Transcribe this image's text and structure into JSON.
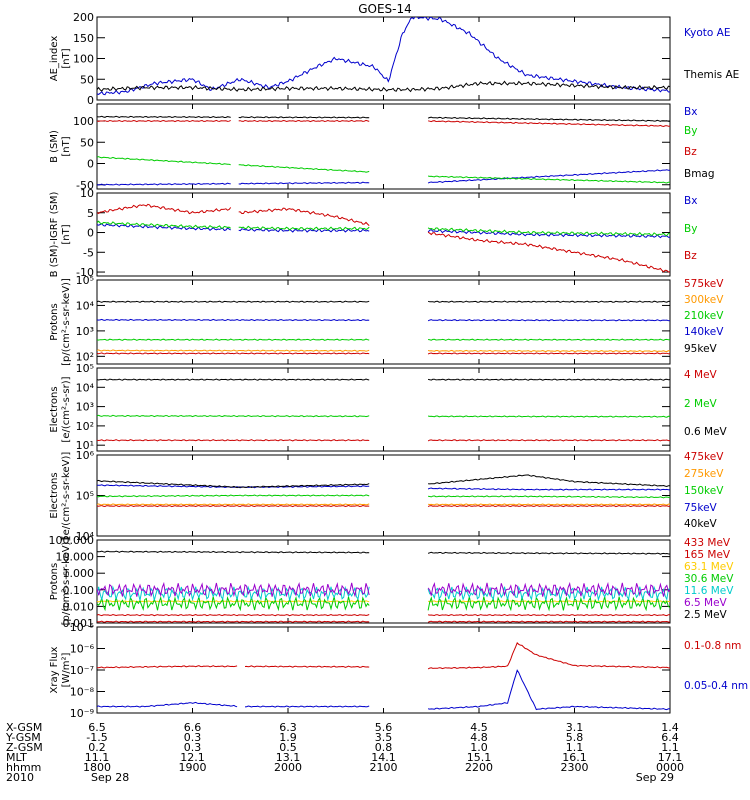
{
  "title": "GOES-14",
  "chart_data": [
    {
      "type": "line",
      "ylabel": "AE_index\n[nT]",
      "ylim": [
        0,
        200
      ],
      "yticks": [
        {
          "v": 0,
          "t": "0"
        },
        {
          "v": 50,
          "t": "50"
        },
        {
          "v": 100,
          "t": "100"
        },
        {
          "v": 150,
          "t": "150"
        },
        {
          "v": 200,
          "t": "200"
        }
      ],
      "series": [
        {
          "name": "Kyoto AE",
          "color": "#0000cc",
          "x": [
            0.0,
            0.3,
            0.6,
            1.0,
            1.2,
            1.5,
            1.8,
            2.0,
            2.3,
            2.5,
            2.7,
            2.9,
            3.05,
            3.2,
            3.3,
            3.6,
            3.9,
            4.2,
            4.5,
            5.0,
            5.5,
            6.0
          ],
          "y": [
            15,
            20,
            40,
            50,
            25,
            50,
            30,
            45,
            80,
            100,
            90,
            80,
            45,
            160,
            200,
            195,
            160,
            100,
            60,
            45,
            30,
            22
          ]
        },
        {
          "name": "Themis AE",
          "color": "#000000",
          "x": [
            0.0,
            0.5,
            1.0,
            1.5,
            2.0,
            2.5,
            3.0,
            3.3,
            3.6,
            4.0,
            4.5,
            5.0,
            5.5,
            6.0
          ],
          "y": [
            25,
            30,
            30,
            25,
            28,
            28,
            25,
            25,
            28,
            40,
            40,
            35,
            30,
            30
          ]
        }
      ]
    },
    {
      "type": "line",
      "ylabel": "B (SM)\n[nT]",
      "ylim": [
        -60,
        140
      ],
      "yticks": [
        {
          "v": -50,
          "t": "-50"
        },
        {
          "v": 0,
          "t": "0"
        },
        {
          "v": 50,
          "t": "50"
        },
        {
          "v": 100,
          "t": "100"
        }
      ],
      "gaps": [
        [
          1.4,
          1.47
        ],
        [
          2.85,
          3.45
        ]
      ],
      "series": [
        {
          "name": "Bx",
          "color": "#0000cc",
          "x": [
            0,
            2.85,
            3.45,
            6.0
          ],
          "y": [
            -50,
            -45,
            -45,
            -15
          ]
        },
        {
          "name": "By",
          "color": "#00cc00",
          "x": [
            0,
            2.85,
            3.45,
            6.0
          ],
          "y": [
            15,
            -20,
            -30,
            -45
          ]
        },
        {
          "name": "Bz",
          "color": "#cc0000",
          "x": [
            0,
            2.85,
            3.45,
            6.0
          ],
          "y": [
            100,
            100,
            100,
            88
          ]
        },
        {
          "name": "Bmag",
          "color": "#000000",
          "x": [
            0,
            2.85,
            3.45,
            6.0
          ],
          "y": [
            110,
            108,
            108,
            100
          ]
        }
      ]
    },
    {
      "type": "line",
      "ylabel": "B (SM)-IGRF (SM)\n[nT]",
      "ylim": [
        -11,
        10
      ],
      "yticks": [
        {
          "v": -10,
          "t": "-10"
        },
        {
          "v": -5,
          "t": "-5"
        },
        {
          "v": 0,
          "t": "0"
        },
        {
          "v": 5,
          "t": "5"
        },
        {
          "v": 10,
          "t": "10"
        }
      ],
      "gaps": [
        [
          1.4,
          1.47
        ],
        [
          2.85,
          3.45
        ]
      ],
      "series": [
        {
          "name": "Bx",
          "color": "#0000cc",
          "x": [
            0,
            1.0,
            2.0,
            2.85,
            3.45,
            4.5,
            6.0
          ],
          "y": [
            2,
            1,
            0.5,
            0.5,
            0.5,
            -0.5,
            -1
          ]
        },
        {
          "name": "By",
          "color": "#00cc00",
          "x": [
            0,
            1.0,
            2.0,
            2.85,
            3.45,
            4.5,
            6.0
          ],
          "y": [
            2.5,
            1.5,
            1,
            1,
            1,
            0,
            -0.5
          ]
        },
        {
          "name": "Bz",
          "color": "#cc0000",
          "x": [
            0,
            0.5,
            1.0,
            1.4,
            1.5,
            2.0,
            2.5,
            2.85,
            3.45,
            4.0,
            4.5,
            5.0,
            5.5,
            6.0
          ],
          "y": [
            5,
            7,
            5,
            6,
            5,
            6,
            4,
            2,
            0,
            -2,
            -3,
            -5,
            -7,
            -10
          ]
        }
      ]
    },
    {
      "type": "line",
      "log": true,
      "ylabel": "Protons\n[p/(cm²-s-sr-keV)]",
      "ylim": [
        50,
        100000
      ],
      "yticks": [
        {
          "v": 100,
          "t": "10²"
        },
        {
          "v": 1000,
          "t": "10³"
        },
        {
          "v": 10000,
          "t": "10⁴"
        },
        {
          "v": 100000,
          "t": "10⁵"
        }
      ],
      "gaps": [
        [
          2.85,
          3.45
        ]
      ],
      "series": [
        {
          "name": "575keV",
          "color": "#cc0000",
          "x": [
            0,
            6
          ],
          "y": [
            130,
            130
          ]
        },
        {
          "name": "300keV",
          "color": "#ff9900",
          "x": [
            0,
            6
          ],
          "y": [
            170,
            160
          ]
        },
        {
          "name": "210keV",
          "color": "#00cc00",
          "x": [
            0,
            6
          ],
          "y": [
            450,
            450
          ]
        },
        {
          "name": "140keV",
          "color": "#0000cc",
          "x": [
            0,
            6
          ],
          "y": [
            2700,
            2600
          ]
        },
        {
          "name": "95keV",
          "color": "#000000",
          "x": [
            0,
            6
          ],
          "y": [
            14000,
            14000
          ]
        }
      ]
    },
    {
      "type": "line",
      "log": true,
      "ylabel": "Electrons\n[e/(cm²-s-sr)]",
      "ylim": [
        5,
        100000
      ],
      "yticks": [
        {
          "v": 10,
          "t": "10¹"
        },
        {
          "v": 100,
          "t": "10²"
        },
        {
          "v": 1000,
          "t": "10³"
        },
        {
          "v": 10000,
          "t": "10⁴"
        },
        {
          "v": 100000,
          "t": "10⁵"
        }
      ],
      "gaps": [
        [
          2.85,
          3.45
        ]
      ],
      "series": [
        {
          "name": "4 MeV",
          "color": "#cc0000",
          "x": [
            0,
            6
          ],
          "y": [
            18,
            18
          ]
        },
        {
          "name": "2 MeV",
          "color": "#00cc00",
          "x": [
            0,
            6
          ],
          "y": [
            330,
            300
          ]
        },
        {
          "name": "0.6 MeV",
          "color": "#000000",
          "x": [
            0,
            6
          ],
          "y": [
            25000,
            25000
          ]
        }
      ]
    },
    {
      "type": "line",
      "log": true,
      "ylabel": "Electrons\n[e/(cm²-s-sr-keV)]",
      "ylim": [
        10000,
        1000000
      ],
      "yticks": [
        {
          "v": 10000,
          "t": "10⁴"
        },
        {
          "v": 100000,
          "t": "10⁵"
        },
        {
          "v": 1000000,
          "t": "10⁶"
        }
      ],
      "gaps": [
        [
          2.85,
          3.45
        ]
      ],
      "series": [
        {
          "name": "475keV",
          "color": "#cc0000",
          "x": [
            0,
            6
          ],
          "y": [
            55000,
            55000
          ]
        },
        {
          "name": "275keV",
          "color": "#ff9900",
          "x": [
            0,
            6
          ],
          "y": [
            60000,
            60000
          ]
        },
        {
          "name": "150keV",
          "color": "#00cc00",
          "x": [
            0,
            1.5,
            2.85,
            3.45,
            4.5,
            6
          ],
          "y": [
            95000,
            100000,
            100000,
            95000,
            95000,
            90000
          ]
        },
        {
          "name": "75keV",
          "color": "#0000cc",
          "x": [
            0,
            1.5,
            2.85,
            3.45,
            4.5,
            6
          ],
          "y": [
            180000,
            160000,
            170000,
            150000,
            140000,
            140000
          ]
        },
        {
          "name": "40keV",
          "color": "#000000",
          "x": [
            0,
            1.5,
            2.85,
            3.45,
            4.0,
            4.5,
            5.0,
            6.0
          ],
          "y": [
            230000,
            160000,
            190000,
            190000,
            250000,
            320000,
            220000,
            170000
          ]
        }
      ]
    },
    {
      "type": "line",
      "log": true,
      "ylabel": "Protons\n[p/(cm²-s-sr-keV)]",
      "ylim": [
        0.001,
        100
      ],
      "yticks": [
        {
          "v": 0.001,
          "t": "0.001"
        },
        {
          "v": 0.01,
          "t": "0.010"
        },
        {
          "v": 0.1,
          "t": "0.100"
        },
        {
          "v": 1,
          "t": "1.000"
        },
        {
          "v": 10,
          "t": "10.000"
        },
        {
          "v": 100,
          "t": "100.000"
        }
      ],
      "gaps": [
        [
          2.85,
          3.45
        ]
      ],
      "series": [
        {
          "name": "433 MeV",
          "color": "#cc0000",
          "x": [
            0,
            6
          ],
          "y": [
            0.0012,
            0.0012
          ]
        },
        {
          "name": "165 MeV",
          "color": "#cc0000",
          "x": [
            0,
            6
          ],
          "y": [
            0.003,
            0.003
          ]
        },
        {
          "name": "63.1 MeV",
          "color": "#ffcc00",
          "x": [
            0,
            6
          ],
          "y": [
            0.02,
            0.02
          ]
        },
        {
          "name": "30.6 MeV",
          "color": "#00cc00",
          "x": [
            0,
            6
          ],
          "y": [
            0.015,
            0.015
          ]
        },
        {
          "name": "11.6 MeV",
          "color": "#00cccc",
          "x": [
            0,
            6
          ],
          "y": [
            0.06,
            0.06
          ]
        },
        {
          "name": "6.5 MeV",
          "color": "#9900cc",
          "x": [
            0,
            6
          ],
          "y": [
            0.1,
            0.1
          ]
        },
        {
          "name": "2.5 MeV",
          "color": "#000000",
          "x": [
            0,
            6
          ],
          "y": [
            20,
            15
          ]
        }
      ]
    },
    {
      "type": "line",
      "log": true,
      "ylabel": "Xray Flux\n[W/m²]",
      "ylim": [
        1e-09,
        1e-05
      ],
      "yticks": [
        {
          "v": 1e-09,
          "t": "10⁻⁹"
        },
        {
          "v": 1e-08,
          "t": "10⁻⁸"
        },
        {
          "v": 1e-07,
          "t": "10⁻⁷"
        },
        {
          "v": 1e-06,
          "t": "10⁻⁶"
        },
        {
          "v": 1e-05,
          "t": "10⁻⁵"
        }
      ],
      "gaps": [
        [
          1.47,
          1.55
        ],
        [
          2.85,
          3.45
        ]
      ],
      "series": [
        {
          "name": "0.1-0.8 nm",
          "color": "#cc0000",
          "x": [
            0,
            1.0,
            2.85,
            3.45,
            4.0,
            4.3,
            4.4,
            4.6,
            5.0,
            6.0
          ],
          "y": [
            1.3e-07,
            1.5e-07,
            1.4e-07,
            1.2e-07,
            1.3e-07,
            1.5e-07,
            1.8e-06,
            5e-07,
            1.6e-07,
            1.3e-07
          ]
        },
        {
          "name": "0.05-0.4 nm",
          "color": "#0000cc",
          "x": [
            0,
            0.5,
            1.0,
            1.5,
            2.0,
            2.85,
            3.45,
            4.0,
            4.3,
            4.4,
            4.6,
            5.0,
            6.0
          ],
          "y": [
            2e-09,
            2e-09,
            3e-09,
            2e-09,
            2e-09,
            2e-09,
            1.5e-09,
            2e-09,
            3e-09,
            1e-07,
            1.5e-09,
            2e-09,
            1.5e-09
          ]
        }
      ]
    }
  ],
  "xaxis": {
    "row_labels": [
      "X-GSM",
      "Y-GSM",
      "Z-GSM",
      "MLT",
      "hhmm",
      "2010"
    ],
    "columns": [
      {
        "vals": [
          "6.5",
          "-1.5",
          "0.2",
          "11.1",
          "1800",
          "Sep 28"
        ]
      },
      {
        "vals": [
          "6.6",
          "0.3",
          "0.3",
          "12.1",
          "1900",
          ""
        ]
      },
      {
        "vals": [
          "6.3",
          "1.9",
          "0.5",
          "13.1",
          "2000",
          ""
        ]
      },
      {
        "vals": [
          "5.6",
          "3.5",
          "0.8",
          "14.1",
          "2100",
          ""
        ]
      },
      {
        "vals": [
          "4.5",
          "4.8",
          "1.0",
          "15.1",
          "2200",
          ""
        ]
      },
      {
        "vals": [
          "3.1",
          "5.8",
          "1.1",
          "16.1",
          "2300",
          ""
        ]
      },
      {
        "vals": [
          "1.4",
          "6.4",
          "1.1",
          "17.1",
          "0000",
          "Sep 29"
        ]
      }
    ]
  }
}
